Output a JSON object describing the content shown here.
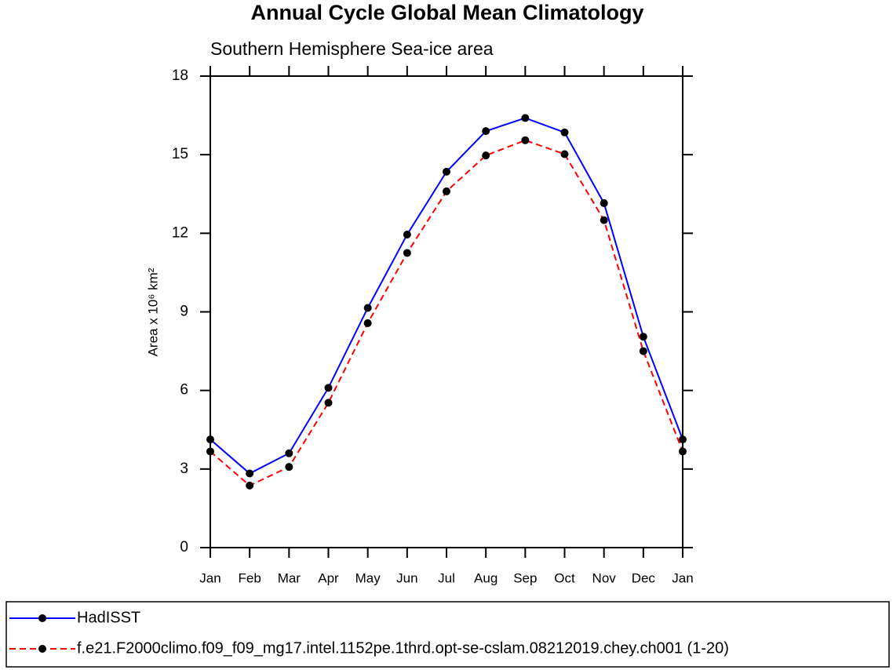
{
  "chart_data": {
    "type": "line",
    "title": "Annual Cycle Global Mean Climatology",
    "subtitle": "Southern Hemisphere Sea-ice area",
    "ylabel": "Area x 10⁶ km²",
    "categories": [
      "Jan",
      "Feb",
      "Mar",
      "Apr",
      "May",
      "Jun",
      "Jul",
      "Aug",
      "Sep",
      "Oct",
      "Nov",
      "Dec",
      "Jan"
    ],
    "series": [
      {
        "name": "HadISST",
        "color": "#0000ff",
        "dash": false,
        "values": [
          4.13,
          2.83,
          3.6,
          6.1,
          9.15,
          11.95,
          14.35,
          15.9,
          16.4,
          15.85,
          13.15,
          8.05,
          4.13
        ]
      },
      {
        "name": "f.e21.F2000climo.f09_f09_mg17.intel.1152pe.1thrd.opt-se-cslam.08212019.chey.ch001 (1-20)",
        "color": "#ff0000",
        "dash": true,
        "values": [
          3.67,
          2.37,
          3.08,
          5.53,
          8.57,
          11.25,
          13.6,
          14.97,
          15.55,
          15.02,
          12.5,
          7.5,
          3.67
        ]
      }
    ],
    "ylim": [
      0,
      18
    ],
    "yticks": [
      0,
      3,
      6,
      9,
      12,
      15,
      18
    ]
  }
}
